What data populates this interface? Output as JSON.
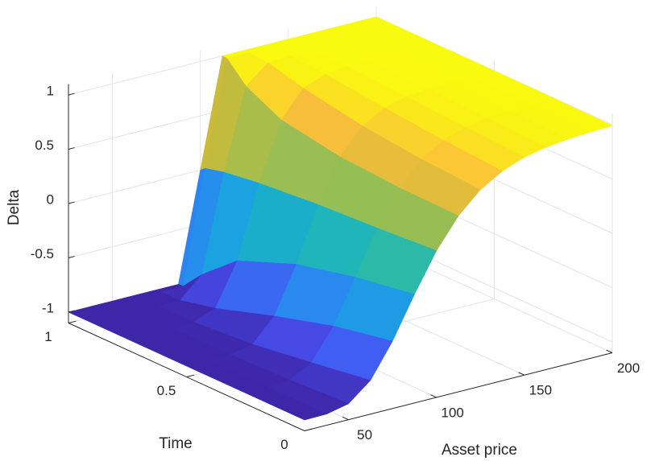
{
  "chart_data": {
    "type": "surface",
    "xlabel": "Asset price",
    "ylabel": "Time",
    "zlabel": "Delta",
    "x": [
      25,
      37.5,
      50,
      62.5,
      75,
      87.5,
      100,
      112.5,
      125,
      137.5,
      150,
      162.5,
      175,
      187.5,
      200
    ],
    "y": [
      0,
      0.25,
      0.5,
      0.75,
      0.9,
      0.98,
      1
    ],
    "values": [
      [
        -1.0,
        -0.997,
        -0.953,
        -0.789,
        -0.48,
        -0.1,
        0.25,
        0.52,
        0.71,
        0.83,
        0.905,
        0.948,
        0.971,
        0.984,
        0.991
      ],
      [
        -1.0,
        -1.0,
        -0.983,
        -0.874,
        -0.59,
        -0.19,
        0.21,
        0.53,
        0.74,
        0.866,
        0.933,
        0.968,
        0.985,
        0.993,
        0.997
      ],
      [
        -1.0,
        -1.0,
        -0.998,
        -0.954,
        -0.745,
        -0.32,
        0.177,
        0.565,
        0.8,
        0.916,
        0.968,
        0.988,
        0.996,
        0.999,
        1.0
      ],
      [
        -1.0,
        -1.0,
        -1.0,
        -0.997,
        -0.922,
        -0.535,
        0.127,
        0.657,
        0.9,
        0.977,
        0.996,
        1.0,
        1.0,
        1.0,
        1.0
      ],
      [
        -1.0,
        -1.0,
        -1.0,
        -1.0,
        -0.997,
        -0.81,
        0.08,
        0.82,
        0.986,
        1.0,
        1.0,
        1.0,
        1.0,
        1.0,
        1.0
      ],
      [
        -1.0,
        -1.0,
        -1.0,
        -1.0,
        -1.0,
        -0.998,
        0.036,
        0.995,
        1.0,
        1.0,
        1.0,
        1.0,
        1.0,
        1.0,
        1.0
      ],
      [
        -1.0,
        -1.0,
        -1.0,
        -1.0,
        -1.0,
        -1.0,
        0,
        1.0,
        1.0,
        1.0,
        1.0,
        1.0,
        1.0,
        1.0,
        1.0
      ]
    ],
    "xlim": [
      25,
      200
    ],
    "ylim": [
      0,
      1
    ],
    "zlim": [
      -1.1,
      1.1
    ],
    "xticks": [
      50,
      100,
      150,
      200
    ],
    "yticks": [
      0,
      0.5,
      1
    ],
    "zticks": [
      -1,
      -0.5,
      0,
      0.5,
      1
    ],
    "grid": true,
    "colormap": [
      "#3e26a8",
      "#4750f0",
      "#2d83f2",
      "#17a7de",
      "#21b7b3",
      "#66c26e",
      "#c8bb3a",
      "#fbbe3b",
      "#f9fb0e"
    ]
  }
}
